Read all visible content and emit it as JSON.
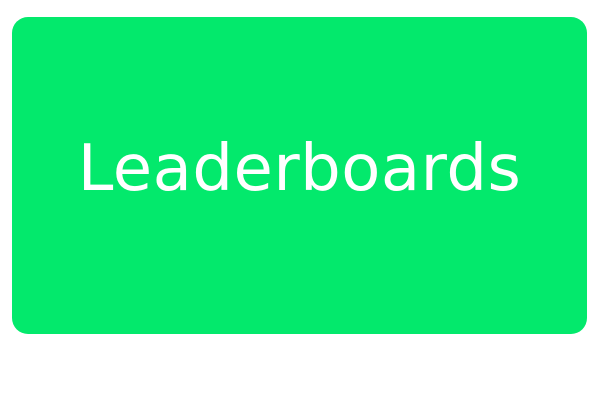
{
  "tile": {
    "label": "Leaderboards",
    "background_color": "#03e96c",
    "text_color": "#ffffff"
  }
}
